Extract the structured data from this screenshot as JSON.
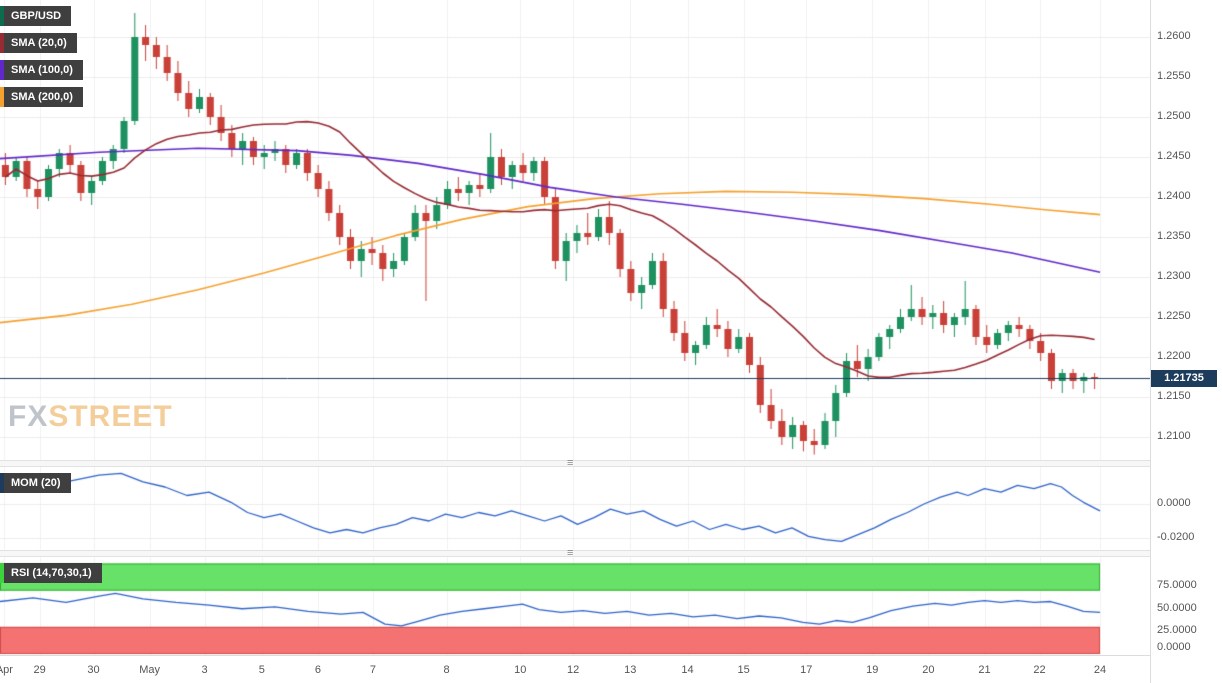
{
  "watermark": {
    "fx": "FX",
    "street": "STREET"
  },
  "icons": {
    "splitter_grip": "≡"
  },
  "colors": {
    "grid_h": "#ececec",
    "grid_v": "#f0f0f0",
    "candle_up": "#1e9160",
    "candle_down": "#c94038",
    "sma20": "#962b34",
    "sma100": "#6128c9",
    "sma200": "#f5a130",
    "price_line": "#1d3c5c",
    "indicator_line": "#2e62c8",
    "rsi_upper_fill": "#67e167",
    "rsi_upper_border": "#2fae2f",
    "rsi_lower_fill": "#f47272",
    "rsi_lower_border": "#d24a4a",
    "badge_bg": "#3f3f3f",
    "accent_pair": "#0c6b4f",
    "accent_mom": "#1d3c5c",
    "accent_rsi": "#3fd23f"
  },
  "chart_data": {
    "type": "candlestick",
    "title": "GBP/USD",
    "legend": {
      "pair": "GBP/USD",
      "sma20": "SMA (20,0)",
      "sma100": "SMA (100,0)",
      "sma200": "SMA (200,0)"
    },
    "last_price": 1.21735,
    "last_price_label": "1.21735",
    "price_axis": {
      "ticks": [
        "1.2600",
        "1.2550",
        "1.2500",
        "1.2450",
        "1.2400",
        "1.2350",
        "1.2300",
        "1.2250",
        "1.2200",
        "1.2150",
        "1.2100"
      ]
    },
    "time_axis": {
      "labels": [
        {
          "t": "Apr",
          "f": 0.004
        },
        {
          "t": "29",
          "f": 0.036
        },
        {
          "t": "30",
          "f": 0.085
        },
        {
          "t": "May",
          "f": 0.136
        },
        {
          "t": "3",
          "f": 0.186
        },
        {
          "t": "5",
          "f": 0.238
        },
        {
          "t": "6",
          "f": 0.289
        },
        {
          "t": "7",
          "f": 0.339
        },
        {
          "t": "8",
          "f": 0.406
        },
        {
          "t": "10",
          "f": 0.473
        },
        {
          "t": "12",
          "f": 0.521
        },
        {
          "t": "13",
          "f": 0.573
        },
        {
          "t": "14",
          "f": 0.625
        },
        {
          "t": "15",
          "f": 0.676
        },
        {
          "t": "17",
          "f": 0.733
        },
        {
          "t": "19",
          "f": 0.793
        },
        {
          "t": "20",
          "f": 0.844
        },
        {
          "t": "21",
          "f": 0.895
        },
        {
          "t": "22",
          "f": 0.945
        },
        {
          "t": "24",
          "f": 1.0
        }
      ]
    },
    "candles": [
      [
        1.244,
        1.2455,
        1.2415,
        1.2425
      ],
      [
        1.2425,
        1.245,
        1.242,
        1.2445
      ],
      [
        1.2445,
        1.245,
        1.24,
        1.241
      ],
      [
        1.241,
        1.242,
        1.2385,
        1.24
      ],
      [
        1.24,
        1.244,
        1.2395,
        1.2435
      ],
      [
        1.2435,
        1.246,
        1.2425,
        1.2455
      ],
      [
        1.2455,
        1.2465,
        1.243,
        1.244
      ],
      [
        1.244,
        1.2445,
        1.2395,
        1.2405
      ],
      [
        1.2405,
        1.2425,
        1.239,
        1.242
      ],
      [
        1.242,
        1.245,
        1.2415,
        1.2445
      ],
      [
        1.2445,
        1.2465,
        1.2435,
        1.246
      ],
      [
        1.246,
        1.25,
        1.2455,
        1.2495
      ],
      [
        1.2495,
        1.263,
        1.249,
        1.26
      ],
      [
        1.26,
        1.2615,
        1.257,
        1.259
      ],
      [
        1.259,
        1.26,
        1.256,
        1.2575
      ],
      [
        1.2575,
        1.259,
        1.2545,
        1.2555
      ],
      [
        1.2555,
        1.257,
        1.252,
        1.253
      ],
      [
        1.253,
        1.2545,
        1.25,
        1.251
      ],
      [
        1.251,
        1.2535,
        1.2505,
        1.2525
      ],
      [
        1.2525,
        1.253,
        1.249,
        1.25
      ],
      [
        1.25,
        1.2515,
        1.247,
        1.248
      ],
      [
        1.248,
        1.249,
        1.245,
        1.246
      ],
      [
        1.246,
        1.248,
        1.244,
        1.247
      ],
      [
        1.247,
        1.2475,
        1.244,
        1.245
      ],
      [
        1.245,
        1.2465,
        1.2435,
        1.2455
      ],
      [
        1.2455,
        1.247,
        1.2445,
        1.246
      ],
      [
        1.246,
        1.2465,
        1.243,
        1.244
      ],
      [
        1.244,
        1.246,
        1.2435,
        1.2455
      ],
      [
        1.2455,
        1.246,
        1.242,
        1.243
      ],
      [
        1.243,
        1.244,
        1.24,
        1.241
      ],
      [
        1.241,
        1.242,
        1.237,
        1.238
      ],
      [
        1.238,
        1.239,
        1.234,
        1.235
      ],
      [
        1.235,
        1.236,
        1.231,
        1.232
      ],
      [
        1.232,
        1.2345,
        1.23,
        1.2335
      ],
      [
        1.2335,
        1.235,
        1.2315,
        1.233
      ],
      [
        1.233,
        1.234,
        1.2295,
        1.231
      ],
      [
        1.231,
        1.233,
        1.23,
        1.232
      ],
      [
        1.232,
        1.2355,
        1.2315,
        1.235
      ],
      [
        1.235,
        1.239,
        1.2345,
        1.238
      ],
      [
        1.238,
        1.239,
        1.227,
        1.237
      ],
      [
        1.237,
        1.24,
        1.236,
        1.239
      ],
      [
        1.239,
        1.242,
        1.2385,
        1.241
      ],
      [
        1.241,
        1.2425,
        1.2395,
        1.2405
      ],
      [
        1.2405,
        1.242,
        1.239,
        1.2415
      ],
      [
        1.2415,
        1.243,
        1.24,
        1.241
      ],
      [
        1.241,
        1.248,
        1.2405,
        1.245
      ],
      [
        1.245,
        1.246,
        1.2415,
        1.2425
      ],
      [
        1.2425,
        1.2445,
        1.241,
        1.244
      ],
      [
        1.244,
        1.2455,
        1.242,
        1.243
      ],
      [
        1.243,
        1.245,
        1.242,
        1.2445
      ],
      [
        1.2445,
        1.245,
        1.239,
        1.24
      ],
      [
        1.24,
        1.241,
        1.231,
        1.232
      ],
      [
        1.232,
        1.2355,
        1.2295,
        1.2345
      ],
      [
        1.2345,
        1.2365,
        1.233,
        1.2355
      ],
      [
        1.2355,
        1.238,
        1.234,
        1.235
      ],
      [
        1.235,
        1.2385,
        1.2345,
        1.2375
      ],
      [
        1.2375,
        1.2395,
        1.234,
        1.2355
      ],
      [
        1.2355,
        1.236,
        1.23,
        1.231
      ],
      [
        1.231,
        1.232,
        1.227,
        1.228
      ],
      [
        1.228,
        1.23,
        1.226,
        1.229
      ],
      [
        1.229,
        1.233,
        1.2285,
        1.232
      ],
      [
        1.232,
        1.233,
        1.225,
        1.226
      ],
      [
        1.226,
        1.227,
        1.222,
        1.223
      ],
      [
        1.223,
        1.2245,
        1.2195,
        1.2205
      ],
      [
        1.2205,
        1.222,
        1.219,
        1.2215
      ],
      [
        1.2215,
        1.225,
        1.221,
        1.224
      ],
      [
        1.224,
        1.226,
        1.2225,
        1.2235
      ],
      [
        1.2235,
        1.2245,
        1.22,
        1.221
      ],
      [
        1.221,
        1.2235,
        1.2205,
        1.2225
      ],
      [
        1.2225,
        1.223,
        1.218,
        1.219
      ],
      [
        1.219,
        1.22,
        1.213,
        1.214
      ],
      [
        1.214,
        1.216,
        1.211,
        1.212
      ],
      [
        1.212,
        1.2135,
        1.209,
        1.21
      ],
      [
        1.21,
        1.2125,
        1.2085,
        1.2115
      ],
      [
        1.2115,
        1.212,
        1.2082,
        1.2095
      ],
      [
        1.2095,
        1.211,
        1.2078,
        1.209
      ],
      [
        1.209,
        1.213,
        1.2085,
        1.212
      ],
      [
        1.212,
        1.2165,
        1.21,
        1.2155
      ],
      [
        1.2155,
        1.2205,
        1.215,
        1.2195
      ],
      [
        1.2195,
        1.2215,
        1.2175,
        1.2185
      ],
      [
        1.2185,
        1.221,
        1.217,
        1.22
      ],
      [
        1.22,
        1.223,
        1.2195,
        1.2225
      ],
      [
        1.2225,
        1.224,
        1.221,
        1.2235
      ],
      [
        1.2235,
        1.226,
        1.223,
        1.225
      ],
      [
        1.225,
        1.229,
        1.2245,
        1.226
      ],
      [
        1.226,
        1.2275,
        1.224,
        1.225
      ],
      [
        1.225,
        1.2265,
        1.2235,
        1.2255
      ],
      [
        1.2255,
        1.227,
        1.223,
        1.224
      ],
      [
        1.224,
        1.2255,
        1.2225,
        1.225
      ],
      [
        1.225,
        1.2295,
        1.224,
        1.226
      ],
      [
        1.226,
        1.2265,
        1.2215,
        1.2225
      ],
      [
        1.2225,
        1.224,
        1.2205,
        1.2215
      ],
      [
        1.2215,
        1.2235,
        1.221,
        1.223
      ],
      [
        1.223,
        1.2245,
        1.222,
        1.224
      ],
      [
        1.224,
        1.225,
        1.2225,
        1.2235
      ],
      [
        1.2235,
        1.224,
        1.221,
        1.222
      ],
      [
        1.222,
        1.223,
        1.2195,
        1.2205
      ],
      [
        1.2205,
        1.221,
        1.216,
        1.217
      ],
      [
        1.217,
        1.2185,
        1.2155,
        1.218
      ],
      [
        1.218,
        1.2185,
        1.216,
        1.217
      ],
      [
        1.217,
        1.218,
        1.2155,
        1.2175
      ],
      [
        1.2175,
        1.218,
        1.216,
        1.2174
      ]
    ],
    "overlays": {
      "sma100": [
        [
          0,
          1.2448
        ],
        [
          0.09,
          1.2456
        ],
        [
          0.18,
          1.2461
        ],
        [
          0.27,
          1.2458
        ],
        [
          0.32,
          1.2452
        ],
        [
          0.38,
          1.2442
        ],
        [
          0.44,
          1.2428
        ],
        [
          0.5,
          1.2412
        ],
        [
          0.56,
          1.24
        ],
        [
          0.62,
          1.2391
        ],
        [
          0.68,
          1.2381
        ],
        [
          0.74,
          1.237
        ],
        [
          0.8,
          1.2358
        ],
        [
          0.86,
          1.2344
        ],
        [
          0.92,
          1.233
        ],
        [
          0.97,
          1.2315
        ],
        [
          1.0,
          1.2306
        ]
      ],
      "sma200": [
        [
          0,
          1.2243
        ],
        [
          0.06,
          1.2252
        ],
        [
          0.12,
          1.2266
        ],
        [
          0.18,
          1.2284
        ],
        [
          0.24,
          1.2305
        ],
        [
          0.3,
          1.2328
        ],
        [
          0.36,
          1.2352
        ],
        [
          0.42,
          1.2372
        ],
        [
          0.48,
          1.2388
        ],
        [
          0.54,
          1.2398
        ],
        [
          0.6,
          1.2404
        ],
        [
          0.66,
          1.2407
        ],
        [
          0.72,
          1.2406
        ],
        [
          0.78,
          1.2403
        ],
        [
          0.84,
          1.2398
        ],
        [
          0.9,
          1.2391
        ],
        [
          0.95,
          1.2384
        ],
        [
          1.0,
          1.2378
        ]
      ]
    },
    "indicators": {
      "mom": {
        "label": "MOM (20)",
        "ticks": [
          {
            "label": "0.0000",
            "v": 0
          },
          {
            "label": "-0.0200",
            "v": -0.02
          }
        ],
        "points": [
          [
            0,
            0.014
          ],
          [
            0.03,
            0.016
          ],
          [
            0.06,
            0.013
          ],
          [
            0.09,
            0.017
          ],
          [
            0.11,
            0.018
          ],
          [
            0.13,
            0.013
          ],
          [
            0.15,
            0.01
          ],
          [
            0.17,
            0.005
          ],
          [
            0.19,
            0.007
          ],
          [
            0.21,
            0.001
          ],
          [
            0.225,
            -0.005
          ],
          [
            0.24,
            -0.008
          ],
          [
            0.255,
            -0.006
          ],
          [
            0.27,
            -0.01
          ],
          [
            0.285,
            -0.014
          ],
          [
            0.3,
            -0.017
          ],
          [
            0.315,
            -0.015
          ],
          [
            0.33,
            -0.017
          ],
          [
            0.345,
            -0.014
          ],
          [
            0.36,
            -0.012
          ],
          [
            0.375,
            -0.008
          ],
          [
            0.39,
            -0.01
          ],
          [
            0.405,
            -0.006
          ],
          [
            0.42,
            -0.008
          ],
          [
            0.435,
            -0.005
          ],
          [
            0.45,
            -0.007
          ],
          [
            0.465,
            -0.004
          ],
          [
            0.48,
            -0.007
          ],
          [
            0.495,
            -0.01
          ],
          [
            0.51,
            -0.007
          ],
          [
            0.525,
            -0.012
          ],
          [
            0.54,
            -0.008
          ],
          [
            0.555,
            -0.003
          ],
          [
            0.57,
            -0.006
          ],
          [
            0.585,
            -0.004
          ],
          [
            0.6,
            -0.009
          ],
          [
            0.615,
            -0.013
          ],
          [
            0.63,
            -0.01
          ],
          [
            0.645,
            -0.015
          ],
          [
            0.66,
            -0.012
          ],
          [
            0.675,
            -0.015
          ],
          [
            0.69,
            -0.013
          ],
          [
            0.705,
            -0.017
          ],
          [
            0.72,
            -0.014
          ],
          [
            0.735,
            -0.019
          ],
          [
            0.75,
            -0.021
          ],
          [
            0.765,
            -0.022
          ],
          [
            0.78,
            -0.018
          ],
          [
            0.795,
            -0.014
          ],
          [
            0.81,
            -0.009
          ],
          [
            0.825,
            -0.005
          ],
          [
            0.84,
            0.0
          ],
          [
            0.855,
            0.004
          ],
          [
            0.87,
            0.007
          ],
          [
            0.88,
            0.005
          ],
          [
            0.895,
            0.009
          ],
          [
            0.91,
            0.007
          ],
          [
            0.925,
            0.011
          ],
          [
            0.94,
            0.009
          ],
          [
            0.955,
            0.012
          ],
          [
            0.965,
            0.01
          ],
          [
            0.975,
            0.005
          ],
          [
            0.985,
            0.001
          ],
          [
            1.0,
            -0.004
          ]
        ]
      },
      "rsi": {
        "label": "RSI (14,70,30,1)",
        "overbought": 70,
        "oversold": 30,
        "ticks": [
          {
            "label": "75.0000",
            "v": 75
          },
          {
            "label": "50.0000",
            "v": 50
          },
          {
            "label": "25.0000",
            "v": 25
          },
          {
            "label": "0.0000",
            "v": 0
          }
        ],
        "points": [
          [
            0,
            58
          ],
          [
            0.03,
            62
          ],
          [
            0.06,
            57
          ],
          [
            0.09,
            64
          ],
          [
            0.105,
            67
          ],
          [
            0.13,
            61
          ],
          [
            0.16,
            57
          ],
          [
            0.19,
            54
          ],
          [
            0.22,
            50
          ],
          [
            0.25,
            52
          ],
          [
            0.28,
            47
          ],
          [
            0.31,
            44
          ],
          [
            0.33,
            46
          ],
          [
            0.35,
            33
          ],
          [
            0.365,
            31
          ],
          [
            0.38,
            36
          ],
          [
            0.4,
            43
          ],
          [
            0.42,
            47
          ],
          [
            0.44,
            50
          ],
          [
            0.46,
            53
          ],
          [
            0.475,
            55
          ],
          [
            0.49,
            49
          ],
          [
            0.51,
            46
          ],
          [
            0.53,
            48
          ],
          [
            0.55,
            45
          ],
          [
            0.57,
            47
          ],
          [
            0.59,
            43
          ],
          [
            0.61,
            45
          ],
          [
            0.63,
            41
          ],
          [
            0.65,
            43
          ],
          [
            0.67,
            39
          ],
          [
            0.69,
            42
          ],
          [
            0.71,
            40
          ],
          [
            0.73,
            35
          ],
          [
            0.745,
            33
          ],
          [
            0.76,
            37
          ],
          [
            0.775,
            35
          ],
          [
            0.79,
            40
          ],
          [
            0.81,
            48
          ],
          [
            0.83,
            53
          ],
          [
            0.85,
            56
          ],
          [
            0.865,
            54
          ],
          [
            0.88,
            57
          ],
          [
            0.895,
            59
          ],
          [
            0.91,
            57
          ],
          [
            0.925,
            59
          ],
          [
            0.94,
            57
          ],
          [
            0.955,
            58
          ],
          [
            0.97,
            53
          ],
          [
            0.985,
            47
          ],
          [
            1.0,
            46
          ]
        ]
      }
    }
  }
}
